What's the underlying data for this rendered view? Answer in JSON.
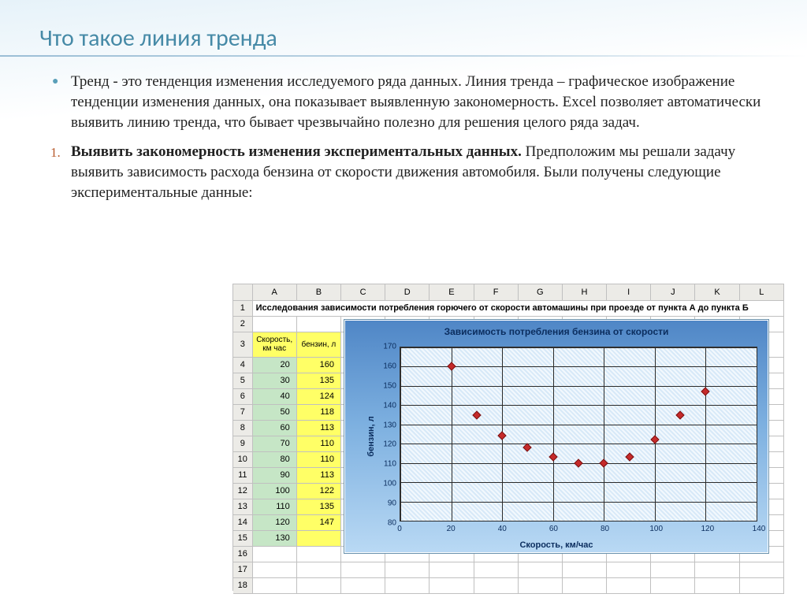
{
  "slide": {
    "title": "Что такое линия тренда",
    "bullet": "Тренд  - это тенденция изменения исследуемого  ряда данных.  Линия тренда –  графическое изображение тенденции изменения данных, она показывает выявленную закономерность. Excel позволяет автоматически выявить  линию тренда,  что бывает чрезвычайно полезно для решения целого ряда задач.",
    "numbered_bold": "Выявить закономерность изменения экспериментальных данных.",
    "numbered_rest": " Предположим мы решали задачу выявить зависимость расхода бензина от скорости движения автомобиля. Были получены следующие экспериментальные данные:"
  },
  "excel": {
    "cols": [
      "A",
      "B",
      "C",
      "D",
      "E",
      "F",
      "G",
      "H",
      "I",
      "J",
      "K",
      "L"
    ],
    "rows_visible": 18,
    "title_cell": "Исследования зависимости потребления горючего от скорости автомашины при проезде от пункта А до пункта Б",
    "header_speed": "Скорость, км час",
    "header_fuel": "бензин, л",
    "data": [
      [
        20,
        160
      ],
      [
        30,
        135
      ],
      [
        40,
        124
      ],
      [
        50,
        118
      ],
      [
        60,
        113
      ],
      [
        70,
        110
      ],
      [
        80,
        110
      ],
      [
        90,
        113
      ],
      [
        100,
        122
      ],
      [
        110,
        135
      ],
      [
        120,
        147
      ],
      [
        130,
        null
      ]
    ]
  },
  "chart": {
    "title": "Зависимость  потребления бензина от скорости",
    "xlabel": "Скорость, км/час",
    "ylabel": "бензин, л",
    "xlim": [
      0,
      140
    ],
    "ylim": [
      80,
      170
    ],
    "xticks": [
      0,
      20,
      40,
      60,
      80,
      100,
      120,
      140
    ],
    "yticks": [
      80,
      90,
      100,
      110,
      120,
      130,
      140,
      150,
      160,
      170
    ],
    "points": [
      [
        20,
        160
      ],
      [
        30,
        135
      ],
      [
        40,
        124
      ],
      [
        50,
        118
      ],
      [
        60,
        113
      ],
      [
        70,
        110
      ],
      [
        80,
        110
      ],
      [
        90,
        113
      ],
      [
        100,
        122
      ],
      [
        110,
        135
      ],
      [
        120,
        147
      ]
    ],
    "marker_color": "#c52a2a",
    "grid_color": "#2b2b2b",
    "panel_gradient": [
      "#4f86c6",
      "#7db0e0",
      "#b9d9f4"
    ]
  },
  "colors": {
    "title": "#468aa7",
    "bullet_marker": "#5a9fb9",
    "number_marker": "#b85c2e",
    "excel_head": "#ecebe7",
    "cell_yellow": "#ffff66",
    "cell_green": "#c6e6c6"
  }
}
